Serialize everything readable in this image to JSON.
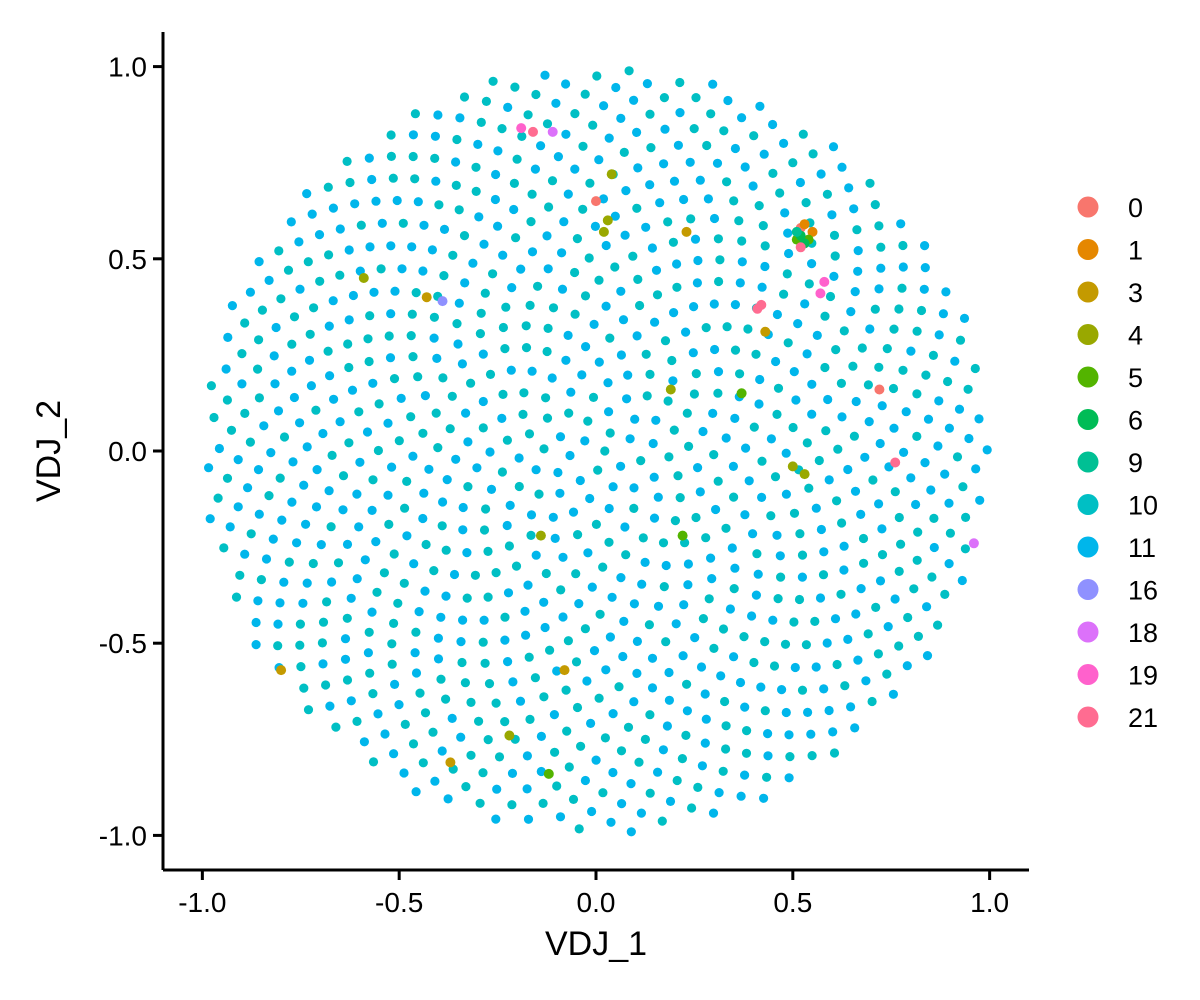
{
  "chart_data": {
    "type": "scatter",
    "title": "",
    "xlabel": "VDJ_1",
    "ylabel": "VDJ_2",
    "xlim": [
      -1.1,
      1.1
    ],
    "ylim": [
      -1.09,
      1.09
    ],
    "x_ticks": [
      -1.0,
      -0.5,
      0.0,
      0.5,
      1.0
    ],
    "x_tick_labels": [
      "-1.0",
      "-0.5",
      "0.0",
      "0.5",
      "1.0"
    ],
    "y_ticks": [
      -1.0,
      -0.5,
      0.0,
      0.5,
      1.0
    ],
    "y_tick_labels": [
      "-1.0",
      "-0.5",
      "0.0",
      "0.5",
      "1.0"
    ],
    "grid": false,
    "legend_position": "right",
    "base_points": {
      "layout": "sunflower-disk",
      "count": 1000,
      "radius": 1.0,
      "series": [
        "10",
        "11"
      ]
    },
    "series": [
      {
        "name": "0",
        "color": "#F8766D",
        "points": [
          [
            0.0,
            0.65
          ],
          [
            0.52,
            0.58
          ],
          [
            0.72,
            0.16
          ]
        ]
      },
      {
        "name": "1",
        "color": "#E58700",
        "points": [
          [
            0.53,
            0.59
          ],
          [
            0.55,
            0.57
          ]
        ]
      },
      {
        "name": "3",
        "color": "#C49A00",
        "points": [
          [
            0.23,
            0.57
          ],
          [
            -0.43,
            0.4
          ],
          [
            0.43,
            0.31
          ],
          [
            -0.08,
            -0.57
          ],
          [
            -0.8,
            -0.57
          ],
          [
            -0.37,
            -0.81
          ]
        ]
      },
      {
        "name": "4",
        "color": "#99A800",
        "points": [
          [
            0.04,
            0.72
          ],
          [
            0.03,
            0.6
          ],
          [
            0.02,
            0.57
          ],
          [
            -0.59,
            0.45
          ],
          [
            0.19,
            0.16
          ],
          [
            0.5,
            -0.04
          ],
          [
            0.53,
            -0.06
          ],
          [
            -0.14,
            -0.22
          ],
          [
            -0.22,
            -0.74
          ]
        ]
      },
      {
        "name": "5",
        "color": "#53B400",
        "points": [
          [
            0.51,
            0.55
          ],
          [
            0.54,
            0.55
          ],
          [
            0.37,
            0.15
          ],
          [
            0.22,
            -0.22
          ],
          [
            -0.12,
            -0.84
          ]
        ]
      },
      {
        "name": "6",
        "color": "#00BC56",
        "points": [
          [
            0.52,
            0.56
          ],
          [
            0.53,
            0.54
          ]
        ]
      },
      {
        "name": "9",
        "color": "#00C094",
        "points": [
          [
            0.51,
            0.57
          ]
        ]
      },
      {
        "name": "10",
        "color": "#00BFC4",
        "points": []
      },
      {
        "name": "11",
        "color": "#00B6EB",
        "points": []
      },
      {
        "name": "16",
        "color": "#8F91FF",
        "points": [
          [
            -0.39,
            0.39
          ]
        ]
      },
      {
        "name": "18",
        "color": "#DC71FA",
        "points": [
          [
            -0.11,
            0.83
          ],
          [
            0.96,
            -0.24
          ]
        ]
      },
      {
        "name": "19",
        "color": "#FF61CC",
        "points": [
          [
            -0.19,
            0.84
          ],
          [
            0.57,
            0.41
          ],
          [
            0.58,
            0.44
          ]
        ]
      },
      {
        "name": "21",
        "color": "#FF6C91",
        "points": [
          [
            -0.16,
            0.83
          ],
          [
            0.41,
            0.37
          ],
          [
            0.42,
            0.38
          ],
          [
            0.76,
            -0.03
          ],
          [
            0.52,
            0.53
          ]
        ]
      }
    ]
  }
}
